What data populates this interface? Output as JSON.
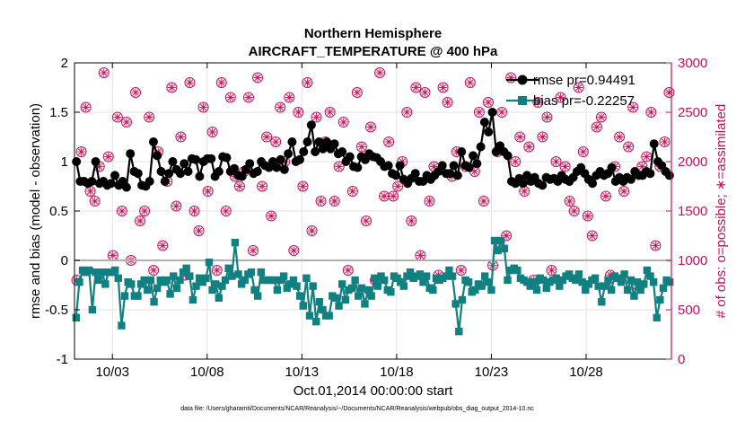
{
  "chart_data": {
    "type": "line",
    "title": "Northern Hemisphere",
    "subtitle": "AIRCRAFT_TEMPERATURE @ 400 hPa",
    "xlabel": "Oct.01,2014 00:00:00 start",
    "ylabel": "rmse and bias (model - observation)",
    "y2label": "# of obs: o=possible; ∗=assimilated",
    "footnote": "data file: /Users/gharamti/Documents/NCAR/Reanalysis/~/Documents/NCAR/Reanalysis/webpub/obs_diag_output_2014-10.nc",
    "xlim": [
      1,
      32.5
    ],
    "ylim": [
      -1,
      2
    ],
    "y2lim": [
      0,
      3000
    ],
    "x_ticks": [
      3,
      8,
      13,
      18,
      23,
      28
    ],
    "x_tick_labels": [
      "10/03",
      "10/08",
      "10/13",
      "10/18",
      "10/23",
      "10/28"
    ],
    "y_ticks": [
      -1,
      -0.5,
      0,
      0.5,
      1,
      1.5,
      2
    ],
    "y_tick_labels": [
      "-1",
      "-0.5",
      "0",
      "0.5",
      "1",
      "1.5",
      "2"
    ],
    "y2_ticks": [
      0,
      500,
      1000,
      1500,
      2000,
      2500,
      3000
    ],
    "y2_tick_labels": [
      "0",
      "500",
      "1000",
      "1500",
      "2000",
      "2500",
      "3000"
    ],
    "grid": true,
    "legend_position": "top-right",
    "colors": {
      "rmse": "#000000",
      "bias": "#118080",
      "obs": "#c8105a",
      "zero_line": "#b0b0b0"
    },
    "series": [
      {
        "name": "rmse pr=0.94491",
        "axis": "left",
        "marker": "circle",
        "values": [
          1.0,
          0.8,
          0.8,
          0.78,
          0.8,
          1.0,
          0.78,
          0.8,
          0.76,
          0.78,
          0.86,
          0.76,
          0.8,
          0.74,
          1.08,
          0.9,
          0.88,
          0.76,
          0.75,
          0.8,
          1.2,
          1.06,
          0.9,
          0.8,
          0.88,
          1.0,
          0.92,
          0.88,
          0.98,
          0.9,
          1.03,
          1.02,
          0.85,
          1.0,
          1.03,
          1.03,
          0.85,
          0.9,
          1.05,
          1.04,
          0.9,
          0.93,
          0.86,
          0.85,
          0.92,
          0.98,
          0.88,
          0.9,
          1.0,
          0.96,
          0.94,
          1.0,
          0.94,
          1.02,
          0.92,
          1.08,
          1.2,
          1.0,
          1.02,
          1.1,
          1.2,
          1.37,
          1.1,
          1.2,
          1.13,
          1.2,
          1.13,
          1.18,
          1.08,
          1.1,
          1.0,
          1.05,
          0.95,
          0.94,
          1.05,
          1.02,
          1.08,
          1.05,
          1.04,
          1.0,
          0.95,
          0.96,
          0.88,
          0.86,
          0.96,
          0.82,
          0.78,
          0.83,
          0.88,
          0.8,
          0.8,
          0.86,
          0.82,
          0.86,
          0.9,
          0.96,
          0.88,
          0.88,
          0.96,
          0.86,
          1.1,
          0.96,
          0.94,
          1.06,
          0.98,
          1.15,
          1.4,
          1.3,
          1.5,
          1.1,
          1.16,
          1.1,
          1.06,
          0.8,
          0.78,
          0.83,
          0.78,
          0.86,
          0.8,
          0.84,
          0.78,
          0.76,
          0.84,
          0.82,
          0.83,
          0.8,
          0.86,
          0.82,
          0.8,
          0.84,
          0.9,
          0.94,
          0.88,
          0.82,
          0.78,
          0.86,
          0.9,
          0.86,
          0.88,
          0.94,
          0.8,
          0.84,
          0.8,
          0.84,
          0.82,
          0.9,
          0.86,
          0.86,
          0.9,
          0.88,
          1.18,
          1.0,
          0.96,
          0.9,
          0.86
        ]
      },
      {
        "name": "bias pr=-0.22257",
        "axis": "left",
        "marker": "square",
        "values": [
          -0.58,
          -0.22,
          -0.1,
          -0.12,
          -0.1,
          -0.5,
          -0.12,
          -0.2,
          -0.12,
          -0.24,
          -0.12,
          -0.12,
          -0.1,
          -0.18,
          -0.66,
          -0.36,
          -0.22,
          -0.24,
          -0.36,
          -0.36,
          -0.24,
          -0.2,
          -0.3,
          -0.2,
          -0.42,
          -0.28,
          -0.2,
          -0.22,
          -0.2,
          -0.34,
          -0.16,
          -0.28,
          -0.2,
          -0.12,
          -0.08,
          -0.16,
          -0.4,
          -0.26,
          -0.18,
          -0.22,
          -0.18,
          -0.02,
          -0.3,
          -0.24,
          -0.38,
          -0.26,
          -0.2,
          -0.08,
          -0.16,
          0.18,
          -0.14,
          -0.24,
          -0.2,
          -0.14,
          -0.12,
          -0.3,
          -0.36,
          -0.12,
          -0.2,
          -0.2,
          -0.2,
          -0.2,
          -0.3,
          -0.2,
          -0.16,
          -0.28,
          -0.24,
          -0.2,
          -0.26,
          -0.36,
          -0.46,
          -0.18,
          -0.56,
          -0.26,
          -0.62,
          -0.42,
          -0.5,
          -0.56,
          -0.56,
          -0.36,
          -0.38,
          -0.46,
          -0.24,
          -0.4,
          -0.3,
          -0.28,
          -0.2,
          -0.36,
          -0.28,
          -0.44,
          -0.3,
          -0.36,
          -0.18,
          -0.26,
          -0.16,
          -0.2,
          -0.3,
          -0.32,
          -0.16,
          -0.18,
          -0.22,
          -0.26,
          -0.16,
          -0.12,
          -0.18,
          -0.16,
          -0.14,
          -0.22,
          -0.16,
          -0.28,
          -0.3,
          -0.18,
          -0.2,
          -0.18,
          -0.16,
          -0.1,
          -0.16,
          -0.44,
          -0.72,
          -0.4,
          -0.2,
          -0.22,
          -0.32,
          -0.3,
          -0.24,
          -0.26,
          -0.16,
          -0.22,
          -0.3,
          0.2,
          0.1,
          0.2,
          0.12,
          -0.2,
          -0.1,
          -0.08,
          -0.1,
          -0.18,
          -0.2,
          -0.22,
          -0.26,
          -0.22,
          -0.3,
          -0.18,
          -0.2,
          -0.28,
          -0.22,
          -0.2,
          -0.18,
          -0.26,
          -0.2,
          -0.16,
          -0.14,
          -0.18,
          -0.2,
          -0.14,
          -0.22,
          -0.3,
          -0.24,
          -0.2,
          -0.18,
          -0.26,
          -0.42,
          -0.26,
          -0.2,
          -0.3,
          -0.16,
          -0.18,
          -0.22,
          -0.14,
          -0.3,
          -0.2,
          -0.36,
          -0.22,
          -0.3,
          -0.24,
          -0.1,
          -0.16,
          -0.22,
          -0.58,
          -0.4,
          -0.28,
          -0.2,
          -0.22
        ]
      },
      {
        "name": "obs possible",
        "axis": "right",
        "marker": "open-circle",
        "values": [
          800,
          2100,
          2550,
          1700,
          1600,
          1950,
          2900,
          2050,
          1050,
          2450,
          1500,
          2400,
          1000,
          2700,
          1400,
          1500,
          2450,
          900,
          2100,
          1150,
          1800,
          2750,
          1550,
          2250,
          850,
          2800,
          1500,
          1300,
          2550,
          1700,
          2300,
          900,
          2800,
          1500,
          2650,
          1850,
          1750,
          1900,
          2650,
          1100,
          2850,
          1750,
          2250,
          1450,
          2200,
          2550,
          2000,
          2650,
          1100,
          2500,
          1750,
          2800,
          1300,
          2450,
          1600,
          2200,
          2500,
          1600,
          1950,
          2400,
          900,
          1700,
          2700,
          2150,
          1400,
          2350,
          800,
          2900,
          1650,
          2200,
          1650,
          1750,
          2000,
          2500,
          1400,
          2750,
          1050,
          2700,
          1600,
          1950,
          850,
          2750,
          2600,
          1850,
          2100,
          900,
          1950,
          2800,
          1900,
          2500,
          1600,
          2600,
          950,
          2100,
          2500,
          1250,
          2850,
          2000,
          2250,
          1700,
          2150,
          800,
          2600,
          2250,
          2450,
          900,
          2000,
          2650,
          1950,
          1600,
          1500,
          2750,
          2100,
          1450,
          1250,
          2350,
          2450,
          1650,
          850,
          1950,
          2250,
          1700,
          2150,
          2550,
          750,
          1950,
          2050,
          2500,
          1150,
          1950,
          2200,
          2700
        ]
      },
      {
        "name": "obs assimilated",
        "axis": "right",
        "marker": "asterisk",
        "values": [
          800,
          2100,
          2550,
          1700,
          1600,
          1950,
          2900,
          2050,
          1050,
          2450,
          1500,
          2400,
          1000,
          2700,
          1400,
          1500,
          2450,
          900,
          2100,
          1150,
          1800,
          2750,
          1550,
          2250,
          850,
          2800,
          1500,
          1300,
          2550,
          1700,
          2300,
          900,
          2800,
          1500,
          2650,
          1850,
          1750,
          1900,
          2650,
          1100,
          2850,
          1750,
          2250,
          1450,
          2200,
          2550,
          2000,
          2650,
          1100,
          2500,
          1750,
          2800,
          1300,
          2450,
          1600,
          2200,
          2500,
          1600,
          1950,
          2400,
          900,
          1700,
          2700,
          2150,
          1400,
          2350,
          800,
          2900,
          1650,
          2200,
          1650,
          1750,
          2000,
          2500,
          1400,
          2750,
          1050,
          2700,
          1600,
          1950,
          850,
          2750,
          2600,
          1850,
          2100,
          900,
          1950,
          2800,
          1900,
          2500,
          1600,
          2600,
          950,
          2100,
          2500,
          1250,
          2850,
          2000,
          2250,
          1700,
          2150,
          800,
          2600,
          2250,
          2450,
          900,
          2000,
          2650,
          1950,
          1600,
          1500,
          2750,
          2100,
          1450,
          1250,
          2350,
          2450,
          1650,
          850,
          1950,
          2250,
          1700,
          2150,
          2550,
          750,
          1950,
          2050,
          2500,
          1150,
          1950,
          2200,
          2700
        ]
      }
    ]
  }
}
